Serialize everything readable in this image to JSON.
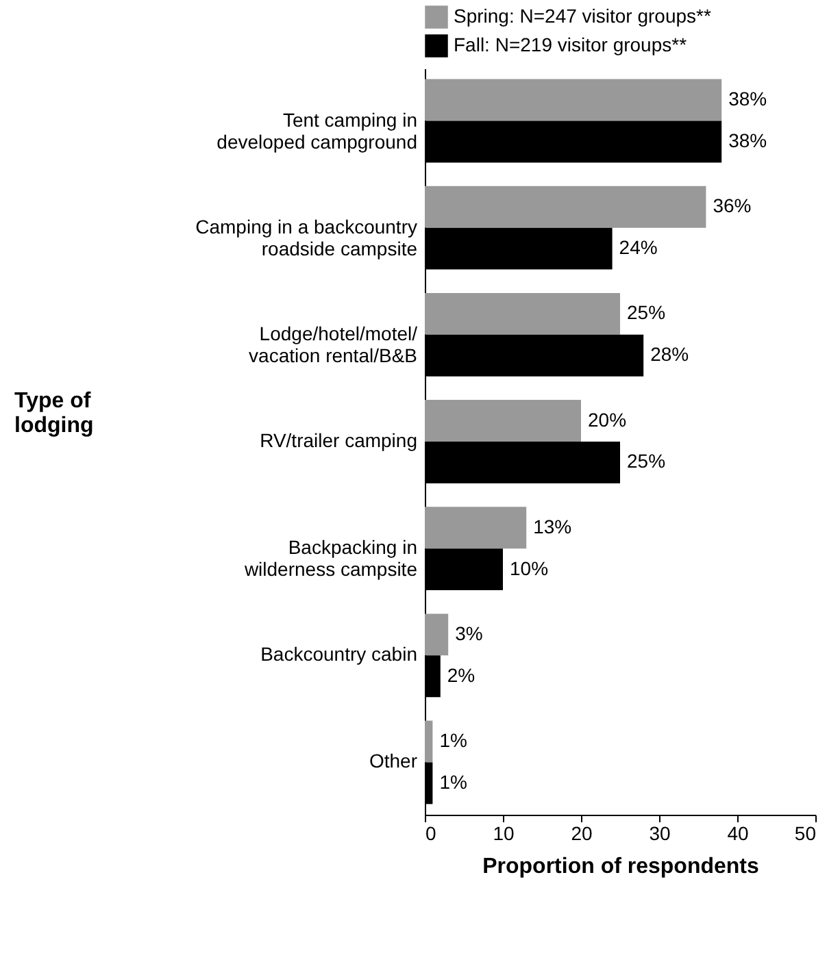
{
  "chart_data": {
    "type": "bar",
    "orientation": "horizontal",
    "xlabel": "Proportion of respondents",
    "ylabel": "Type of lodging",
    "categories": [
      "Tent camping in developed campground",
      "Camping in a backcountry roadside campsite",
      "Lodge/hotel/motel/vacation rental/B&B",
      "RV/trailer camping",
      "Backpacking in wilderness campsite",
      "Backcountry cabin",
      "Other"
    ],
    "series": [
      {
        "name": "Spring: N=247 visitor groups**",
        "color": "#999999",
        "values": [
          38,
          36,
          25,
          20,
          13,
          3,
          1
        ],
        "value_labels": [
          "38%",
          "36%",
          "25%",
          "20%",
          "13%",
          "3%",
          "1%"
        ]
      },
      {
        "name": "Fall: N=219 visitor groups**",
        "color": "#000000",
        "values": [
          38,
          24,
          28,
          25,
          10,
          2,
          1
        ],
        "value_labels": [
          "38%",
          "24%",
          "28%",
          "25%",
          "10%",
          "2%",
          "1%"
        ]
      }
    ],
    "xlim": [
      0,
      50
    ],
    "xticks": [
      0,
      10,
      20,
      30,
      40,
      50
    ],
    "legend": "top left",
    "grid": false
  }
}
